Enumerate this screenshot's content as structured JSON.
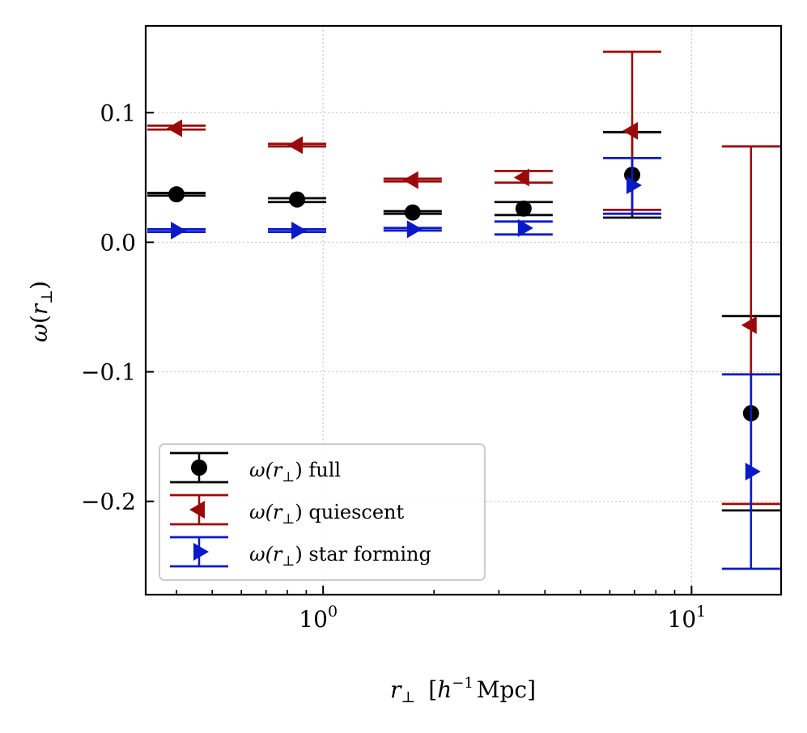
{
  "chart_data": {
    "type": "scatter",
    "x_scale": "log",
    "xlim": [
      0.33,
      17.5
    ],
    "ylim": [
      -0.272,
      0.167
    ],
    "grid": true,
    "xlabel": {
      "main": "r",
      "sub": "⊥",
      "bracket_open": "[",
      "h": "h",
      "exp": "−1",
      "unit": "Mpc]"
    },
    "ylabel": {
      "omega": "ω",
      "paren_open": "(",
      "r": "r",
      "sub": "⊥",
      "paren_close": ")"
    },
    "y_ticks": [
      {
        "value": 0.1,
        "label": "0.1"
      },
      {
        "value": 0.0,
        "label": "0.0"
      },
      {
        "value": -0.1,
        "label": "−0.1"
      },
      {
        "value": -0.2,
        "label": "−0.2"
      }
    ],
    "x_major_ticks": [
      {
        "value": 1,
        "base": "10",
        "exp": "0"
      },
      {
        "value": 10,
        "base": "10",
        "exp": "1"
      }
    ],
    "x_minor_ticks": [
      0.4,
      0.5,
      0.6,
      0.7,
      0.8,
      0.9,
      2,
      3,
      4,
      5,
      6,
      7,
      8,
      9
    ],
    "legend": {
      "position": "lower-left",
      "entries": [
        {
          "prefix": "ω(r",
          "sub": "⊥",
          "suffix": ") full"
        },
        {
          "prefix": "ω(r",
          "sub": "⊥",
          "suffix": ") quiescent"
        },
        {
          "prefix": "ω(r",
          "sub": "⊥",
          "suffix": ") star forming"
        }
      ]
    },
    "series": [
      {
        "name": "ω(r⊥) full",
        "color": "#000000",
        "marker": "circle",
        "points": [
          {
            "x": 0.4,
            "y": 0.037,
            "lo": 0.036,
            "hi": 0.038
          },
          {
            "x": 0.85,
            "y": 0.033,
            "lo": 0.031,
            "hi": 0.034
          },
          {
            "x": 1.75,
            "y": 0.023,
            "lo": 0.022,
            "hi": 0.024
          },
          {
            "x": 3.5,
            "y": 0.026,
            "lo": 0.021,
            "hi": 0.031
          },
          {
            "x": 6.9,
            "y": 0.052,
            "lo": 0.019,
            "hi": 0.085
          },
          {
            "x": 14.5,
            "y": -0.132,
            "lo": -0.207,
            "hi": -0.057
          }
        ]
      },
      {
        "name": "ω(r⊥) quiescent",
        "color": "#9b0a0a",
        "marker": "triangle-left",
        "points": [
          {
            "x": 0.4,
            "y": 0.088,
            "lo": 0.087,
            "hi": 0.09
          },
          {
            "x": 0.85,
            "y": 0.075,
            "lo": 0.074,
            "hi": 0.076
          },
          {
            "x": 1.75,
            "y": 0.048,
            "lo": 0.047,
            "hi": 0.049
          },
          {
            "x": 3.5,
            "y": 0.05,
            "lo": 0.046,
            "hi": 0.055
          },
          {
            "x": 6.9,
            "y": 0.086,
            "lo": 0.025,
            "hi": 0.147
          },
          {
            "x": 14.5,
            "y": -0.064,
            "lo": -0.202,
            "hi": 0.074
          }
        ]
      },
      {
        "name": "ω(r⊥) star forming",
        "color": "#0a1ac8",
        "marker": "triangle-right",
        "points": [
          {
            "x": 0.4,
            "y": 0.009,
            "lo": 0.008,
            "hi": 0.01
          },
          {
            "x": 0.85,
            "y": 0.009,
            "lo": 0.008,
            "hi": 0.01
          },
          {
            "x": 1.75,
            "y": 0.01,
            "lo": 0.009,
            "hi": 0.011
          },
          {
            "x": 3.5,
            "y": 0.011,
            "lo": 0.006,
            "hi": 0.016
          },
          {
            "x": 6.9,
            "y": 0.044,
            "lo": 0.022,
            "hi": 0.065
          },
          {
            "x": 14.5,
            "y": -0.177,
            "lo": -0.252,
            "hi": -0.102
          }
        ]
      }
    ]
  }
}
